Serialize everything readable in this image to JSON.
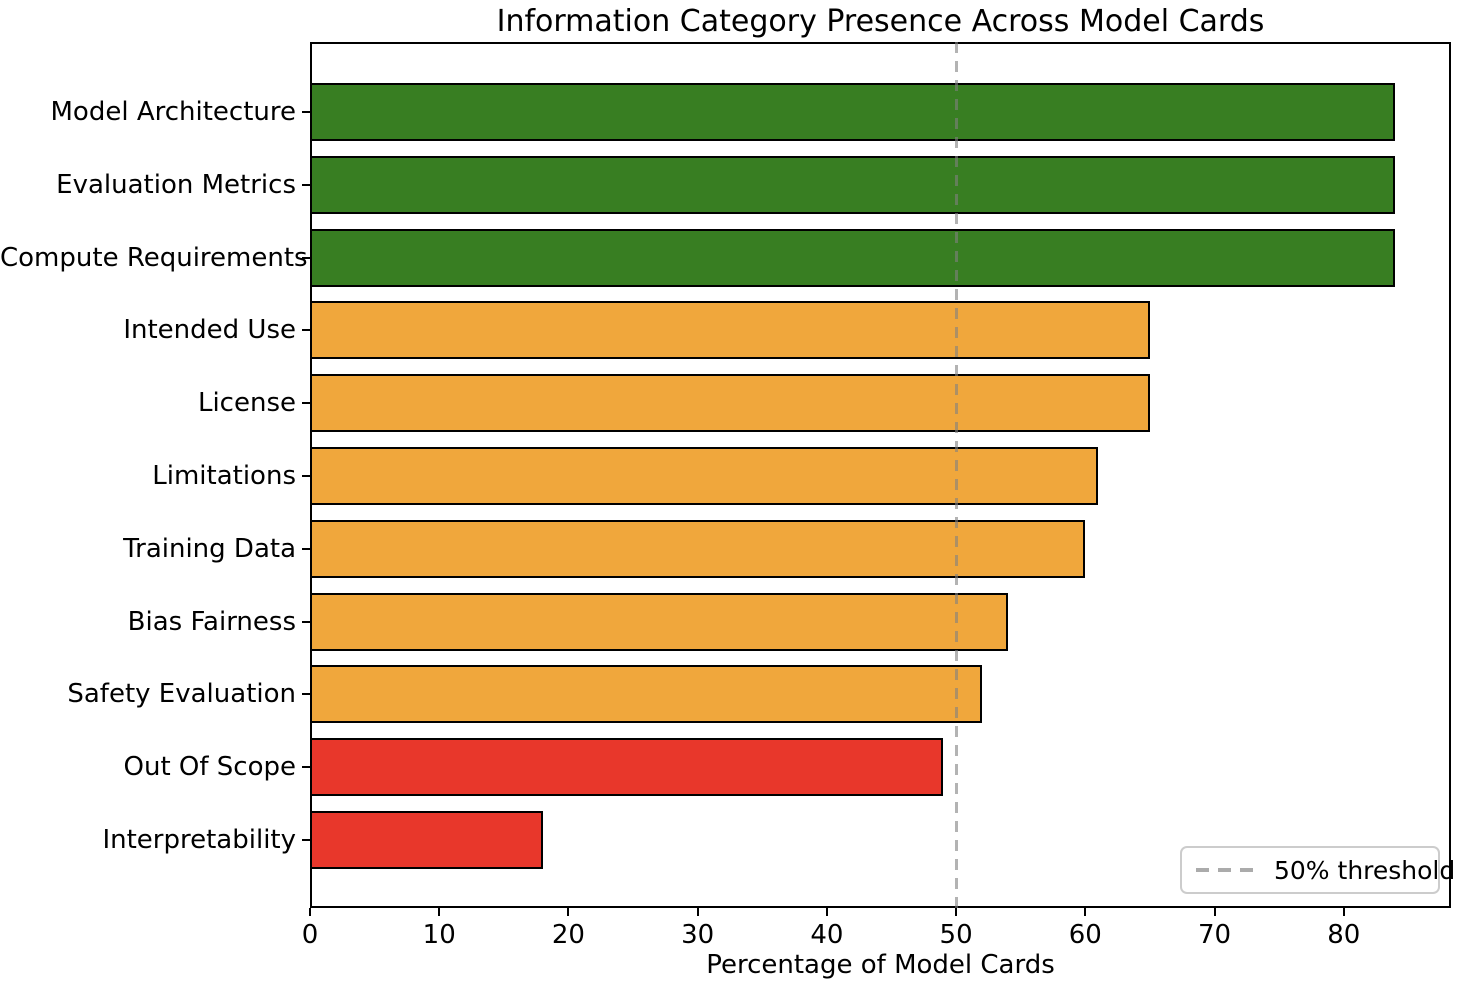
{
  "chart_data": {
    "type": "bar",
    "orientation": "horizontal",
    "title": "Information Category Presence Across Model Cards",
    "xlabel": "Percentage of Model Cards",
    "ylabel": "",
    "categories": [
      "Model Architecture",
      "Evaluation Metrics",
      "Compute Requirements",
      "Intended Use",
      "License",
      "Limitations",
      "Training Data",
      "Bias Fairness",
      "Safety Evaluation",
      "Out Of Scope",
      "Interpretability"
    ],
    "values": [
      84,
      84,
      84,
      65,
      65,
      61,
      60,
      54,
      52,
      49,
      18
    ],
    "bar_colors": [
      "#387e22",
      "#387e22",
      "#387e22",
      "#f0a73c",
      "#f0a73c",
      "#f0a73c",
      "#f0a73c",
      "#f0a73c",
      "#f0a73c",
      "#e8372b",
      "#e8372b"
    ],
    "edge_color": "#000000",
    "xlim": [
      0,
      88.3
    ],
    "xticks": [
      0,
      10,
      20,
      30,
      40,
      50,
      60,
      70,
      80
    ],
    "grid": false,
    "threshold": {
      "value": 50,
      "color": "#808080",
      "style": "dashed"
    },
    "legend": {
      "position": "lower right",
      "entries": [
        {
          "label": "50% threshold",
          "style": "dashed",
          "color": "#ababab"
        }
      ]
    }
  }
}
